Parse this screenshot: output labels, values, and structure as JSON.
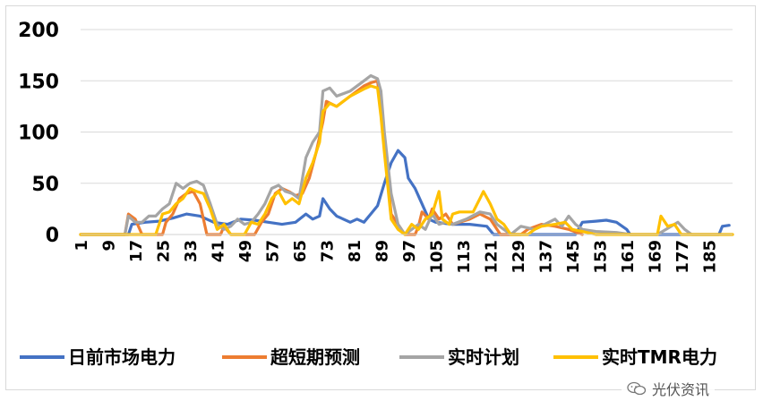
{
  "chart_data": {
    "type": "line",
    "title": "",
    "xlabel": "",
    "ylabel": "",
    "ylim": [
      0,
      200
    ],
    "yticks": [
      0,
      50,
      100,
      150,
      200
    ],
    "xlim": [
      1,
      192
    ],
    "xticks": [
      1,
      9,
      17,
      25,
      33,
      41,
      49,
      57,
      65,
      73,
      81,
      89,
      97,
      105,
      113,
      121,
      129,
      137,
      145,
      153,
      161,
      169,
      177,
      185
    ],
    "grid": "horizontal",
    "legend": "bottom",
    "series": [
      {
        "name": "日前市场电力",
        "color": "#4472C4",
        "points": [
          [
            1,
            0
          ],
          [
            15,
            0
          ],
          [
            16,
            10
          ],
          [
            20,
            12
          ],
          [
            24,
            13
          ],
          [
            28,
            16
          ],
          [
            32,
            20
          ],
          [
            36,
            18
          ],
          [
            40,
            12
          ],
          [
            44,
            10
          ],
          [
            48,
            15
          ],
          [
            52,
            14
          ],
          [
            56,
            12
          ],
          [
            60,
            10
          ],
          [
            64,
            12
          ],
          [
            67,
            20
          ],
          [
            69,
            15
          ],
          [
            71,
            18
          ],
          [
            72,
            35
          ],
          [
            74,
            25
          ],
          [
            76,
            18
          ],
          [
            80,
            12
          ],
          [
            82,
            15
          ],
          [
            84,
            12
          ],
          [
            86,
            20
          ],
          [
            88,
            28
          ],
          [
            90,
            50
          ],
          [
            92,
            70
          ],
          [
            94,
            82
          ],
          [
            96,
            75
          ],
          [
            97,
            55
          ],
          [
            99,
            45
          ],
          [
            101,
            30
          ],
          [
            103,
            15
          ],
          [
            105,
            12
          ],
          [
            110,
            10
          ],
          [
            115,
            10
          ],
          [
            120,
            8
          ],
          [
            122,
            0
          ],
          [
            146,
            0
          ],
          [
            148,
            12
          ],
          [
            152,
            13
          ],
          [
            155,
            14
          ],
          [
            158,
            12
          ],
          [
            161,
            5
          ],
          [
            162,
            0
          ],
          [
            188,
            0
          ],
          [
            189,
            8
          ],
          [
            191,
            9
          ]
        ]
      },
      {
        "name": "超短期预测",
        "color": "#ED7D31",
        "points": [
          [
            1,
            0
          ],
          [
            14,
            0
          ],
          [
            15,
            20
          ],
          [
            17,
            15
          ],
          [
            19,
            0
          ],
          [
            25,
            0
          ],
          [
            26,
            12
          ],
          [
            28,
            20
          ],
          [
            30,
            35
          ],
          [
            32,
            40
          ],
          [
            34,
            42
          ],
          [
            36,
            30
          ],
          [
            37,
            15
          ],
          [
            38,
            0
          ],
          [
            42,
            0
          ],
          [
            43,
            8
          ],
          [
            45,
            0
          ],
          [
            52,
            0
          ],
          [
            54,
            12
          ],
          [
            56,
            20
          ],
          [
            58,
            40
          ],
          [
            60,
            45
          ],
          [
            62,
            42
          ],
          [
            64,
            38
          ],
          [
            66,
            40
          ],
          [
            68,
            55
          ],
          [
            70,
            80
          ],
          [
            72,
            110
          ],
          [
            73,
            130
          ],
          [
            76,
            125
          ],
          [
            80,
            135
          ],
          [
            84,
            145
          ],
          [
            86,
            148
          ],
          [
            88,
            150
          ],
          [
            89,
            120
          ],
          [
            90,
            90
          ],
          [
            92,
            20
          ],
          [
            94,
            10
          ],
          [
            96,
            0
          ],
          [
            99,
            0
          ],
          [
            100,
            8
          ],
          [
            101,
            22
          ],
          [
            103,
            15
          ],
          [
            104,
            25
          ],
          [
            106,
            15
          ],
          [
            108,
            20
          ],
          [
            110,
            10
          ],
          [
            115,
            15
          ],
          [
            118,
            20
          ],
          [
            121,
            15
          ],
          [
            124,
            0
          ],
          [
            130,
            0
          ],
          [
            132,
            5
          ],
          [
            136,
            10
          ],
          [
            140,
            8
          ],
          [
            144,
            5
          ],
          [
            148,
            0
          ]
        ]
      },
      {
        "name": "实时计划",
        "color": "#A5A5A5",
        "points": [
          [
            1,
            0
          ],
          [
            14,
            0
          ],
          [
            15,
            18
          ],
          [
            17,
            12
          ],
          [
            19,
            12
          ],
          [
            21,
            18
          ],
          [
            23,
            18
          ],
          [
            25,
            25
          ],
          [
            27,
            30
          ],
          [
            29,
            50
          ],
          [
            31,
            45
          ],
          [
            33,
            50
          ],
          [
            35,
            52
          ],
          [
            37,
            48
          ],
          [
            39,
            30
          ],
          [
            41,
            10
          ],
          [
            43,
            5
          ],
          [
            45,
            8
          ],
          [
            47,
            15
          ],
          [
            49,
            10
          ],
          [
            51,
            12
          ],
          [
            53,
            20
          ],
          [
            55,
            30
          ],
          [
            57,
            45
          ],
          [
            59,
            48
          ],
          [
            61,
            42
          ],
          [
            63,
            40
          ],
          [
            65,
            35
          ],
          [
            67,
            75
          ],
          [
            69,
            90
          ],
          [
            71,
            100
          ],
          [
            72,
            140
          ],
          [
            74,
            143
          ],
          [
            76,
            135
          ],
          [
            80,
            140
          ],
          [
            84,
            150
          ],
          [
            86,
            155
          ],
          [
            88,
            152
          ],
          [
            89,
            140
          ],
          [
            90,
            100
          ],
          [
            92,
            40
          ],
          [
            94,
            10
          ],
          [
            96,
            0
          ],
          [
            98,
            5
          ],
          [
            100,
            10
          ],
          [
            102,
            5
          ],
          [
            104,
            20
          ],
          [
            106,
            10
          ],
          [
            108,
            12
          ],
          [
            110,
            10
          ],
          [
            114,
            15
          ],
          [
            118,
            22
          ],
          [
            121,
            20
          ],
          [
            123,
            10
          ],
          [
            125,
            5
          ],
          [
            127,
            0
          ],
          [
            130,
            8
          ],
          [
            134,
            5
          ],
          [
            137,
            10
          ],
          [
            140,
            15
          ],
          [
            142,
            8
          ],
          [
            144,
            18
          ],
          [
            146,
            10
          ],
          [
            148,
            5
          ],
          [
            152,
            3
          ],
          [
            158,
            2
          ],
          [
            162,
            0
          ],
          [
            170,
            0
          ],
          [
            176,
            12
          ],
          [
            178,
            5
          ],
          [
            180,
            0
          ],
          [
            192,
            0
          ]
        ]
      },
      {
        "name": "实时TMR电力",
        "color": "#FFC000",
        "points": [
          [
            1,
            0
          ],
          [
            23,
            0
          ],
          [
            25,
            20
          ],
          [
            27,
            22
          ],
          [
            29,
            30
          ],
          [
            31,
            35
          ],
          [
            33,
            45
          ],
          [
            35,
            42
          ],
          [
            37,
            40
          ],
          [
            39,
            25
          ],
          [
            41,
            5
          ],
          [
            43,
            10
          ],
          [
            45,
            0
          ],
          [
            49,
            0
          ],
          [
            51,
            12
          ],
          [
            53,
            10
          ],
          [
            55,
            20
          ],
          [
            57,
            35
          ],
          [
            59,
            42
          ],
          [
            61,
            30
          ],
          [
            63,
            35
          ],
          [
            65,
            30
          ],
          [
            67,
            55
          ],
          [
            69,
            70
          ],
          [
            71,
            90
          ],
          [
            72,
            120
          ],
          [
            74,
            128
          ],
          [
            76,
            125
          ],
          [
            80,
            135
          ],
          [
            84,
            142
          ],
          [
            86,
            145
          ],
          [
            88,
            143
          ],
          [
            89,
            115
          ],
          [
            90,
            80
          ],
          [
            92,
            15
          ],
          [
            94,
            5
          ],
          [
            96,
            0
          ],
          [
            98,
            10
          ],
          [
            100,
            5
          ],
          [
            102,
            15
          ],
          [
            104,
            20
          ],
          [
            106,
            42
          ],
          [
            107,
            15
          ],
          [
            109,
            10
          ],
          [
            110,
            20
          ],
          [
            112,
            22
          ],
          [
            116,
            22
          ],
          [
            118,
            35
          ],
          [
            119,
            42
          ],
          [
            121,
            30
          ],
          [
            123,
            15
          ],
          [
            125,
            10
          ],
          [
            127,
            0
          ],
          [
            132,
            0
          ],
          [
            134,
            5
          ],
          [
            136,
            8
          ],
          [
            140,
            10
          ],
          [
            143,
            12
          ],
          [
            145,
            5
          ],
          [
            148,
            3
          ],
          [
            152,
            0
          ],
          [
            170,
            0
          ],
          [
            171,
            18
          ],
          [
            173,
            8
          ],
          [
            175,
            10
          ],
          [
            177,
            0
          ],
          [
            192,
            0
          ]
        ]
      }
    ]
  },
  "watermark": {
    "text": "光伏资讯",
    "icon": "wechat-icon"
  }
}
